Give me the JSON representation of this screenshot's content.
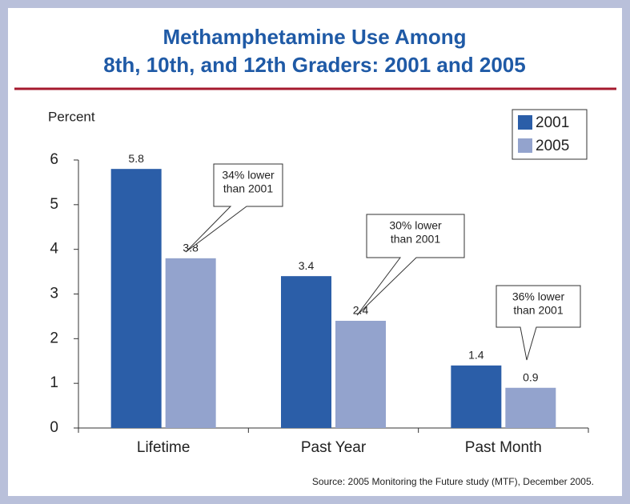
{
  "chart_data": {
    "type": "bar",
    "title_lines": [
      "Methamphetamine Use Among",
      "8th, 10th, and 12th Graders: 2001 and 2005"
    ],
    "y_label": "Percent",
    "categories": [
      "Lifetime",
      "Past Year",
      "Past Month"
    ],
    "series": [
      {
        "name": "2001",
        "color": "#2b5ea8",
        "values": [
          5.8,
          3.4,
          1.4
        ]
      },
      {
        "name": "2005",
        "color": "#93a3cd",
        "values": [
          3.8,
          2.4,
          0.9
        ]
      }
    ],
    "ylim": [
      0,
      6
    ],
    "yticks": [
      0,
      1,
      2,
      3,
      4,
      5,
      6
    ],
    "grid": false,
    "legend": "upper right",
    "annotations": [
      {
        "lines": [
          "34% lower",
          "than 2001"
        ]
      },
      {
        "lines": [
          "30% lower",
          "than 2001"
        ]
      },
      {
        "lines": [
          "36% lower",
          "than 2001"
        ]
      }
    ],
    "source": "Source: 2005 Monitoring the Future study (MTF), December 2005."
  }
}
